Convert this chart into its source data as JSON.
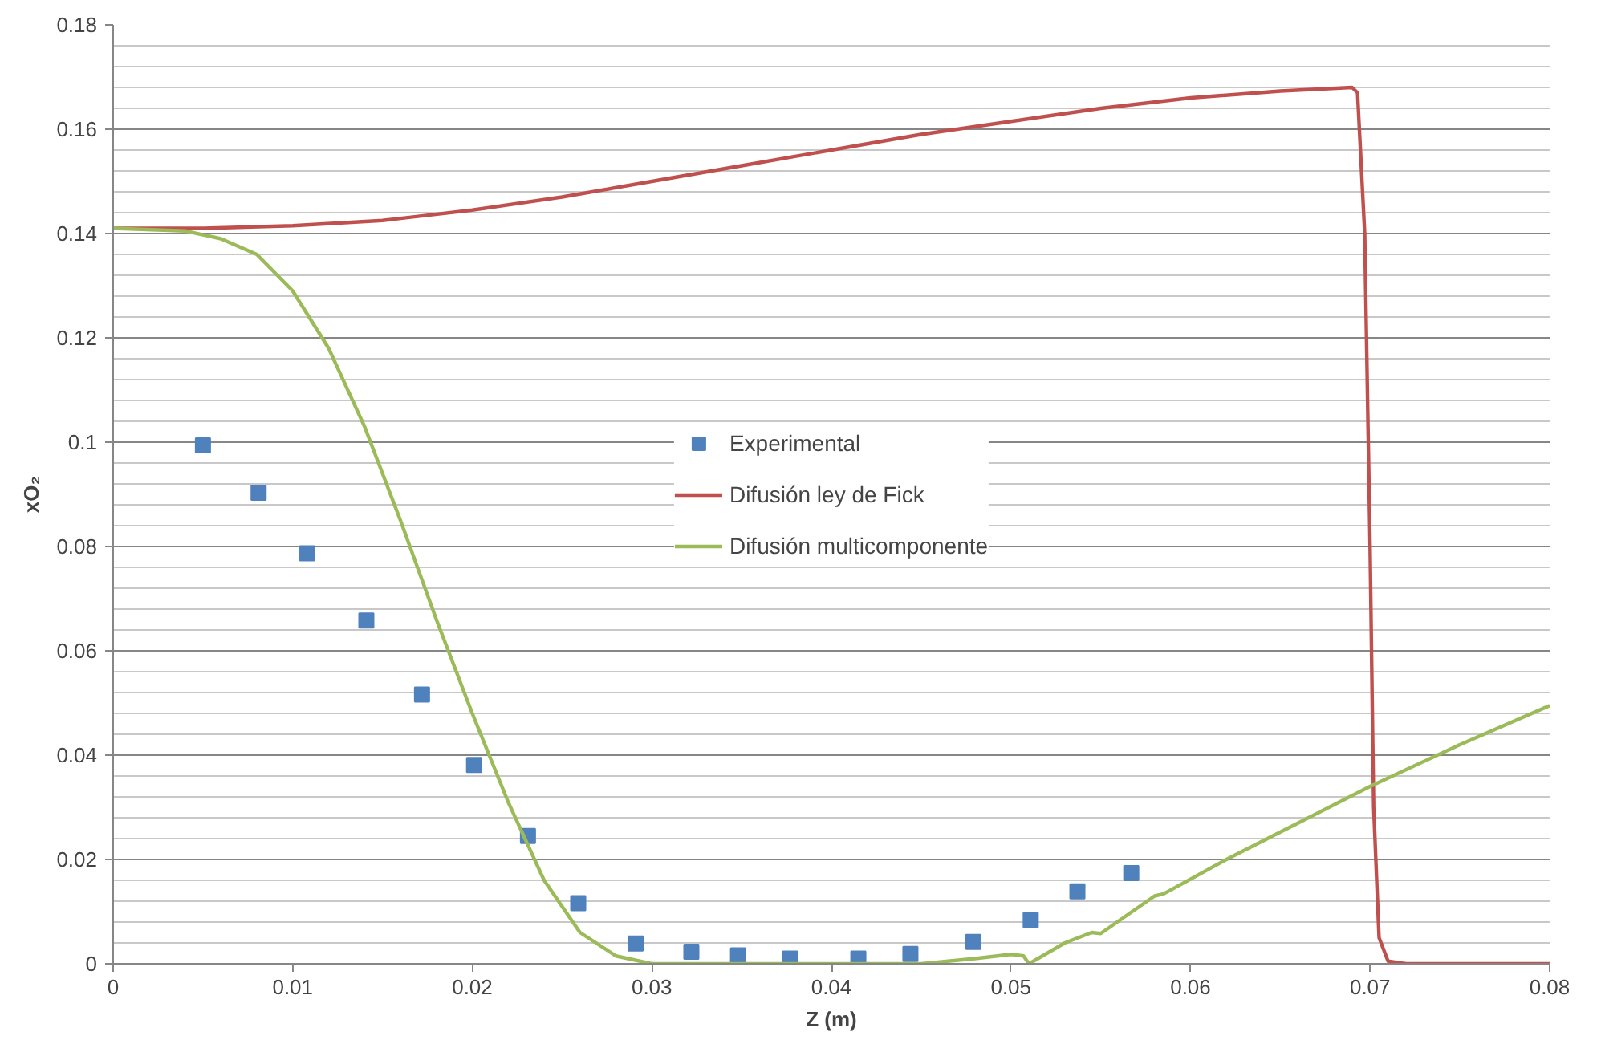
{
  "chart_data": {
    "type": "line",
    "xlabel": "Z (m)",
    "ylabel": "xO₂",
    "xlim": [
      0,
      0.08
    ],
    "ylim": [
      0,
      0.18
    ],
    "xticks": [
      {
        "value": 0,
        "label": "0"
      },
      0.01,
      0.02,
      0.03,
      0.04,
      0.05,
      0.06,
      0.07,
      0.08
    ],
    "yticks": [
      {
        "value": 0,
        "label": "0"
      },
      0.02,
      0.04,
      0.06,
      0.08,
      {
        "value": 0.1,
        "label": "0.1"
      },
      0.12,
      0.14,
      0.16,
      0.18
    ],
    "grid": "y",
    "legend": "center",
    "series": [
      {
        "name": "Experimental",
        "type": "scatter",
        "marker": "square",
        "color": "#4f81bd",
        "x": [
          0.005,
          0.0081,
          0.0108,
          0.0141,
          0.0172,
          0.0201,
          0.0231,
          0.0259,
          0.0291,
          0.0322,
          0.0348,
          0.0377,
          0.0415,
          0.0444,
          0.0479,
          0.0511,
          0.0537,
          0.0567
        ],
        "values": [
          0.0994,
          0.0903,
          0.0787,
          0.0658,
          0.0516,
          0.0381,
          0.0245,
          0.0116,
          0.0039,
          0.0023,
          0.0016,
          0.001,
          0.001,
          0.0019,
          0.0042,
          0.0084,
          0.0139,
          0.0174
        ]
      },
      {
        "name": "Difusión ley de Fick",
        "color": "#c0504d",
        "x": [
          0,
          0.005,
          0.01,
          0.015,
          0.02,
          0.025,
          0.03,
          0.035,
          0.04,
          0.045,
          0.05,
          0.055,
          0.06,
          0.065,
          0.069,
          0.0693,
          0.0697,
          0.07,
          0.0702,
          0.0705,
          0.071,
          0.072,
          0.08
        ],
        "values": [
          0.141,
          0.141,
          0.1415,
          0.1425,
          0.1445,
          0.147,
          0.15,
          0.153,
          0.156,
          0.159,
          0.1615,
          0.164,
          0.166,
          0.1673,
          0.168,
          0.167,
          0.14,
          0.08,
          0.03,
          0.005,
          0.0005,
          0,
          0
        ]
      },
      {
        "name": "Difusión multicomponente",
        "color": "#9bbb59",
        "x": [
          0,
          0.004,
          0.006,
          0.008,
          0.01,
          0.012,
          0.014,
          0.016,
          0.018,
          0.02,
          0.022,
          0.024,
          0.026,
          0.028,
          0.03,
          0.045,
          0.048,
          0.05,
          0.0507,
          0.051,
          0.0515,
          0.053,
          0.0545,
          0.055,
          0.058,
          0.0585,
          0.062,
          0.066,
          0.07,
          0.075,
          0.08
        ],
        "values": [
          0.141,
          0.1405,
          0.139,
          0.136,
          0.129,
          0.118,
          0.103,
          0.085,
          0.066,
          0.048,
          0.031,
          0.016,
          0.006,
          0.0015,
          0,
          0,
          0.001,
          0.0018,
          0.0015,
          0,
          0.001,
          0.004,
          0.006,
          0.0058,
          0.013,
          0.0134,
          0.02,
          0.027,
          0.034,
          0.042,
          0.0495
        ]
      }
    ]
  }
}
